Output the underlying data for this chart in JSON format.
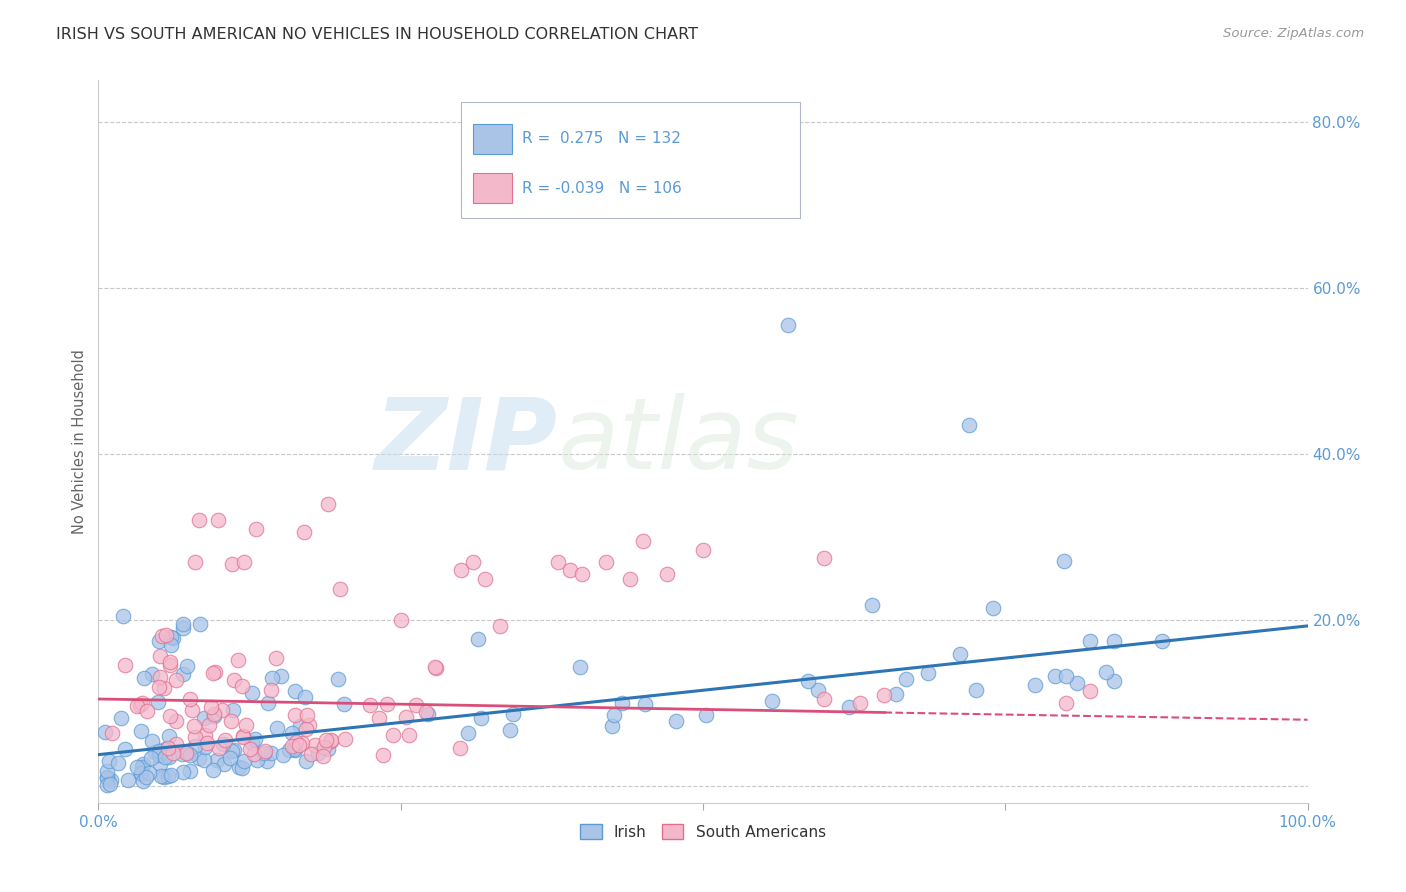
{
  "title": "IRISH VS SOUTH AMERICAN NO VEHICLES IN HOUSEHOLD CORRELATION CHART",
  "source": "Source: ZipAtlas.com",
  "ylabel": "No Vehicles in Household",
  "legend_irish_label": "Irish",
  "legend_sa_label": "South Americans",
  "irish_R": 0.275,
  "irish_N": 132,
  "sa_R": -0.039,
  "sa_N": 106,
  "irish_color": "#aac4e8",
  "irish_edge_color": "#5b9bd5",
  "irish_line_color": "#2e75b6",
  "sa_color": "#f4b8cb",
  "sa_edge_color": "#e07090",
  "sa_line_color": "#d94f7a",
  "background_color": "#ffffff",
  "grid_color": "#c8c8c8",
  "title_color": "#333333",
  "watermark_zip": "ZIP",
  "watermark_atlas": "atlas",
  "xlim": [
    0.0,
    1.0
  ],
  "ylim": [
    -0.02,
    0.85
  ],
  "yticks": [
    0.0,
    0.2,
    0.4,
    0.6,
    0.8
  ],
  "ytick_labels": [
    "",
    "20.0%",
    "40.0%",
    "60.0%",
    "80.0%"
  ],
  "tick_color": "#5b9bd5"
}
